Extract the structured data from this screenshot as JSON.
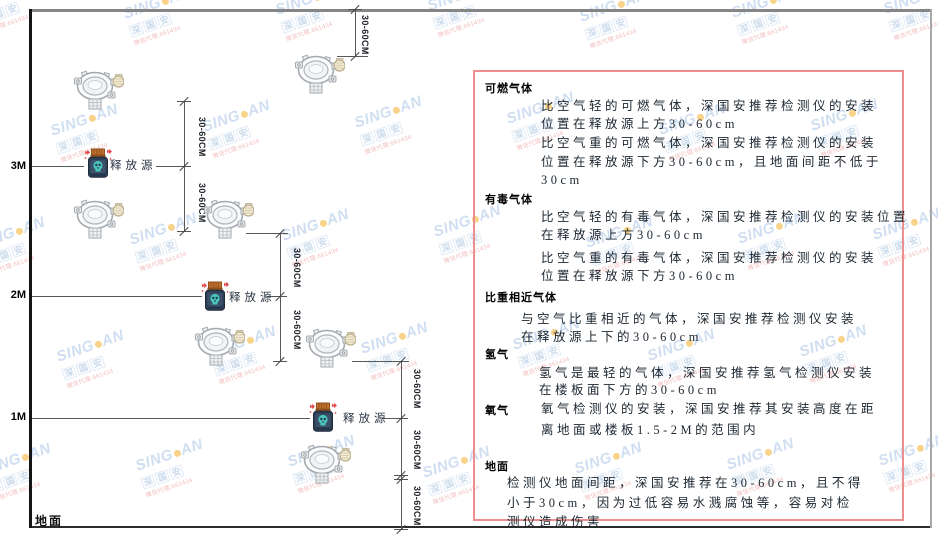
{
  "diagram": {
    "axis_labels": [
      {
        "text": "3M"
      },
      {
        "text": "2M"
      },
      {
        "text": "1M"
      }
    ],
    "ground_label": "地面",
    "release_source_label": "释放源",
    "dim_label": "30-60CM"
  },
  "panel": {
    "sections": [
      {
        "heading": "可燃气体",
        "p1": [
          "比空气轻的可燃气体，深国安推荐检测仪的安装",
          "位置在释放源上方30-60cm"
        ],
        "p2": [
          "比空气重的可燃气体，深国安推荐检测仪的安装",
          "位置在释放源下方30-60cm，且地面间距不低于",
          "30cm"
        ]
      },
      {
        "heading": "有毒气体",
        "p1": [
          "比空气轻的有毒气体，深国安推荐检测仪的安装位置",
          "在释放源上方30-60cm"
        ],
        "p2": [
          "比空气重的有毒气体，深国安推荐检测仪的安装",
          "位置在释放源下方30-60cm"
        ]
      },
      {
        "heading": "比重相近气体",
        "p1": [
          "与空气比重相近的气体，深国安推荐检测仪安装",
          "在释放源上下的30-60cm"
        ]
      },
      {
        "heading": "氢气",
        "p1": [
          "氢气是最轻的气体，深国安推荐氢气检测仪安装",
          "在楼板面下方的30-60cm"
        ]
      },
      {
        "heading": "氧气",
        "p1": [
          "氧气检测仪的安装，深国安推荐其安装高度在距",
          "离地面或楼板1.5-2M的范围内"
        ]
      },
      {
        "heading": "地面",
        "p1": [
          "检测仪地面间距，深国安推荐在30-60cm，且不得",
          "小于30cm，因为过低容易水溅腐蚀等，容易对检",
          "测仪造成伤害"
        ]
      }
    ]
  },
  "watermark": {
    "brand_left": "SING",
    "brand_right": "AN",
    "brand_cjk": "深国安",
    "contact": "微信代理:661434"
  },
  "colors": {
    "panel_border": "#ee8f8f",
    "watermark_blue": "#a9c4e6",
    "watermark_dot": "#f4b02a",
    "source_body": "#2d3f56",
    "source_cap": "#c0702a",
    "skull_teal": "#49c7ba",
    "sparkle_red": "#e24c4c"
  }
}
